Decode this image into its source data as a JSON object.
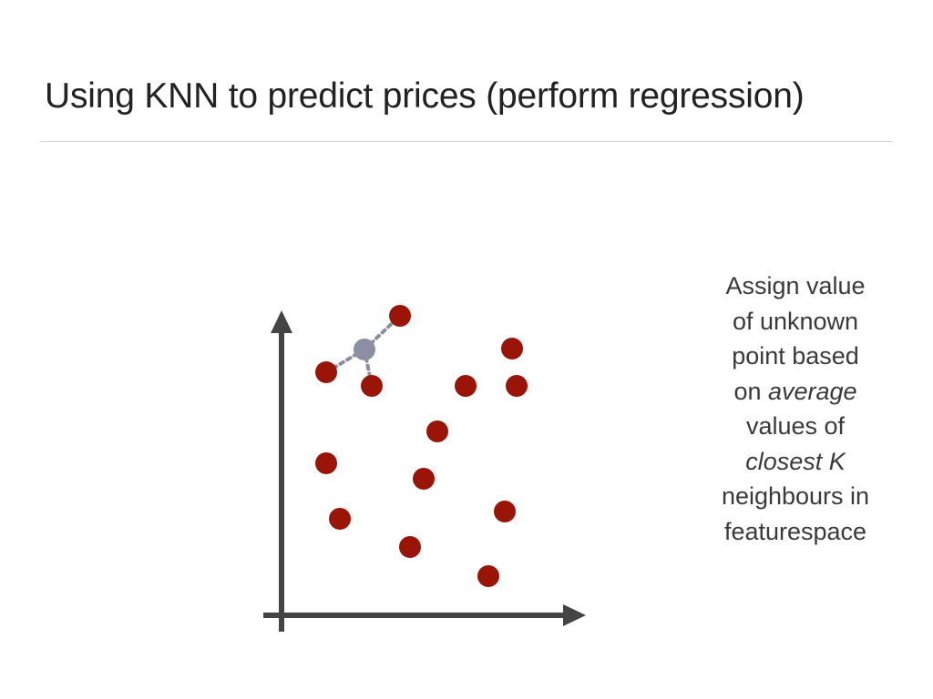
{
  "slide": {
    "title": "Using KNN to predict prices (perform regression)"
  },
  "caption": {
    "lines": [
      {
        "text": "Assign value"
      },
      {
        "text": "of unknown"
      },
      {
        "text": "point based"
      },
      {
        "prefix": "on ",
        "emphasis": "average"
      },
      {
        "text": "values of"
      },
      {
        "emphasis": "closest K"
      },
      {
        "text": "neighbours in"
      },
      {
        "text": "featurespace"
      }
    ]
  },
  "diagram": {
    "colors": {
      "axis": "#444444",
      "known_point": "#9a1408",
      "unknown_point": "#8c8fa3",
      "neighbor_link": "#8c8fa3"
    },
    "known_points": [
      {
        "id": "p1"
      },
      {
        "id": "p2"
      },
      {
        "id": "p3"
      },
      {
        "id": "p4"
      },
      {
        "id": "p5"
      },
      {
        "id": "p6"
      },
      {
        "id": "p7"
      },
      {
        "id": "p8"
      },
      {
        "id": "p9"
      },
      {
        "id": "p10"
      },
      {
        "id": "p11"
      },
      {
        "id": "p12"
      },
      {
        "id": "p13"
      },
      {
        "id": "p14"
      }
    ],
    "unknown_point": {
      "id": "unknown"
    },
    "nearest_neighbors": [
      "p1",
      "p2",
      "p3"
    ]
  }
}
